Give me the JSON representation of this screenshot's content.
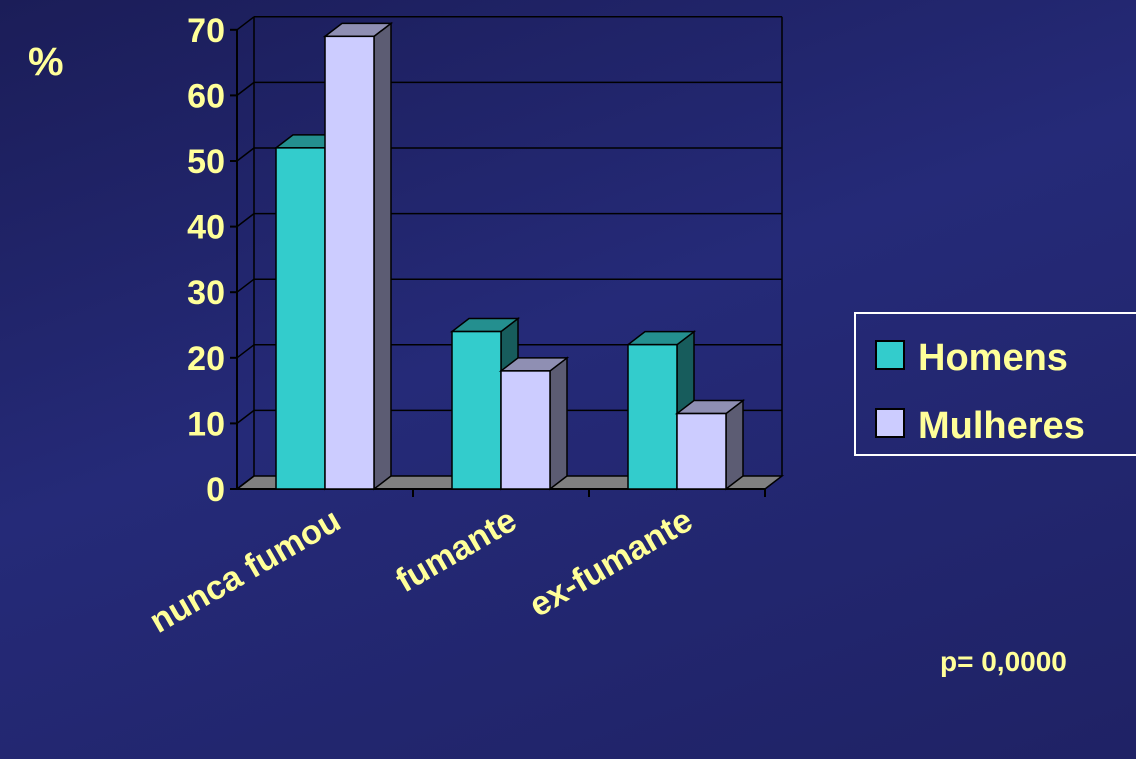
{
  "chart_data": {
    "type": "bar",
    "ylabel": "%",
    "categories": [
      "nunca fumou",
      "fumante",
      "ex-fumante"
    ],
    "series": [
      {
        "name": "Homens",
        "values": [
          52,
          24,
          22
        ],
        "color": "#33cccc"
      },
      {
        "name": "Mulheres",
        "values": [
          69,
          18,
          11.5
        ],
        "color": "#ccccff"
      }
    ],
    "ylim": [
      0,
      70
    ],
    "yticks": [
      0,
      10,
      20,
      30,
      40,
      50,
      60,
      70
    ],
    "grid": true,
    "legend_position": "right",
    "annotation": "p= 0,0000"
  },
  "colors": {
    "text": "#ffff99",
    "axis": "#000000",
    "floor": "#808080",
    "legend_border": "#ffffff"
  }
}
